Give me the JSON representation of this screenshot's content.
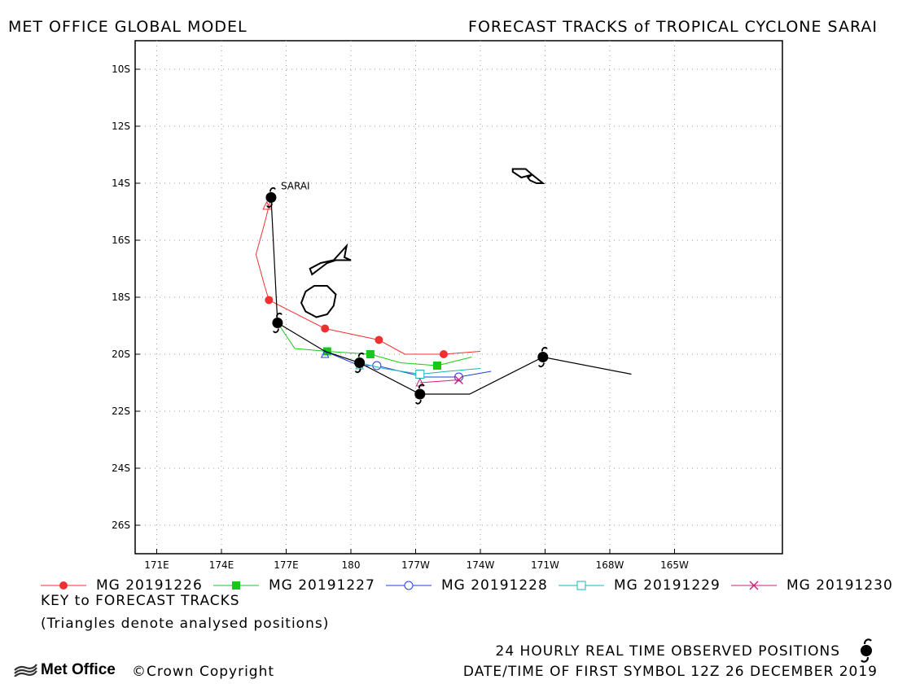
{
  "header": {
    "left": "MET OFFICE GLOBAL MODEL",
    "right": "FORECAST TRACKS of TROPICAL CYCLONE SARAI"
  },
  "chart_data": {
    "type": "scatter",
    "title": "FORECAST TRACKS of TROPICAL CYCLONE SARAI",
    "x_ticks": [
      "171E",
      "174E",
      "177E",
      "180",
      "177W",
      "174W",
      "171W",
      "168W",
      "165W"
    ],
    "x_tick_values": [
      171,
      174,
      177,
      180,
      183,
      186,
      189,
      192,
      195
    ],
    "y_ticks": [
      "10S",
      "12S",
      "14S",
      "16S",
      "18S",
      "20S",
      "22S",
      "24S",
      "26S"
    ],
    "y_tick_values": [
      -10,
      -12,
      -14,
      -16,
      -18,
      -20,
      -22,
      -24,
      -26
    ],
    "xlim": [
      170.0,
      200.0
    ],
    "ylim": [
      -27.0,
      -9.0
    ],
    "grid": true,
    "storm_label": "SARAI",
    "observed_track": [
      [
        176.3,
        -14.5
      ],
      [
        176.6,
        -18.9
      ],
      [
        178.8,
        -19.9
      ],
      [
        180.4,
        -20.3
      ],
      [
        183.2,
        -21.4
      ],
      [
        185.5,
        -21.4
      ],
      [
        188.9,
        -20.1
      ],
      [
        193.0,
        -20.7
      ]
    ],
    "observed_symbols": [
      [
        176.3,
        -14.5
      ],
      [
        176.6,
        -18.9
      ],
      [
        180.4,
        -20.3
      ],
      [
        183.2,
        -21.4
      ],
      [
        188.9,
        -20.1
      ]
    ],
    "series": [
      {
        "name": "MG 20191226",
        "color": "#f03030",
        "marker": "filled-circle",
        "points": [
          [
            176.3,
            -14.5
          ],
          [
            176.0,
            -15.4
          ],
          [
            175.6,
            -16.5
          ],
          [
            176.0,
            -17.6
          ],
          [
            176.2,
            -18.1
          ],
          [
            178.8,
            -19.1
          ],
          [
            181.3,
            -19.5
          ],
          [
            182.5,
            -20.0
          ],
          [
            184.3,
            -20.0
          ],
          [
            186.0,
            -19.9
          ]
        ],
        "markers": [
          [
            176.2,
            -18.1
          ],
          [
            178.8,
            -19.1
          ],
          [
            181.3,
            -19.5
          ],
          [
            184.3,
            -20.0
          ]
        ],
        "analysed": [
          [
            176.1,
            -14.8
          ]
        ]
      },
      {
        "name": "MG 20191227",
        "color": "#18c818",
        "marker": "filled-square",
        "points": [
          [
            176.6,
            -18.9
          ],
          [
            177.4,
            -19.8
          ],
          [
            178.9,
            -19.9
          ],
          [
            180.9,
            -20.0
          ],
          [
            182.3,
            -20.3
          ],
          [
            184.0,
            -20.4
          ],
          [
            185.6,
            -20.1
          ]
        ],
        "markers": [
          [
            178.9,
            -19.9
          ],
          [
            180.9,
            -20.0
          ],
          [
            184.0,
            -20.4
          ]
        ],
        "analysed": [
          [
            176.6,
            -18.9
          ]
        ]
      },
      {
        "name": "MG 20191228",
        "color": "#2040e0",
        "marker": "open-circle",
        "points": [
          [
            178.8,
            -19.9
          ],
          [
            180.4,
            -20.4
          ],
          [
            181.2,
            -20.4
          ],
          [
            183.4,
            -20.8
          ],
          [
            185.0,
            -20.8
          ],
          [
            186.5,
            -20.6
          ]
        ],
        "markers": [
          [
            181.2,
            -20.4
          ],
          [
            185.0,
            -20.8
          ]
        ],
        "analysed": [
          [
            178.8,
            -20.0
          ]
        ]
      },
      {
        "name": "MG 20191229",
        "color": "#10b8b8",
        "marker": "open-square",
        "points": [
          [
            180.4,
            -20.3
          ],
          [
            181.5,
            -20.5
          ],
          [
            183.2,
            -20.7
          ],
          [
            184.5,
            -20.6
          ],
          [
            186.0,
            -20.5
          ]
        ],
        "markers": [
          [
            183.2,
            -20.7
          ]
        ],
        "analysed": [
          [
            180.4,
            -20.4
          ]
        ]
      },
      {
        "name": "MG 20191230",
        "color": "#d0207a",
        "marker": "cross",
        "points": [
          [
            183.2,
            -21.0
          ],
          [
            185.0,
            -20.9
          ]
        ],
        "markers": [
          [
            185.0,
            -20.9
          ]
        ],
        "analysed": [
          [
            183.2,
            -21.0
          ]
        ]
      }
    ],
    "land": [
      [
        [
          178.4,
          -18.7
        ],
        [
          178.9,
          -18.6
        ],
        [
          179.2,
          -18.3
        ],
        [
          179.3,
          -17.9
        ],
        [
          178.9,
          -17.6
        ],
        [
          178.3,
          -17.6
        ],
        [
          177.9,
          -17.8
        ],
        [
          177.7,
          -18.2
        ],
        [
          177.9,
          -18.5
        ]
      ],
      [
        [
          178.1,
          -17.0
        ],
        [
          178.6,
          -16.8
        ],
        [
          179.2,
          -16.7
        ],
        [
          179.8,
          -16.2
        ],
        [
          179.7,
          -16.6
        ],
        [
          180.0,
          -16.7
        ],
        [
          179.3,
          -16.7
        ],
        [
          178.9,
          -16.8
        ],
        [
          178.2,
          -17.2
        ]
      ],
      [
        [
          187.5,
          -13.5
        ],
        [
          188.1,
          -13.5
        ],
        [
          188.4,
          -13.7
        ],
        [
          187.9,
          -13.8
        ],
        [
          187.5,
          -13.6
        ]
      ],
      [
        [
          188.2,
          -13.8
        ],
        [
          188.4,
          -13.7
        ],
        [
          188.9,
          -14.0
        ],
        [
          188.6,
          -14.0
        ],
        [
          188.3,
          -13.9
        ]
      ]
    ]
  },
  "legend": {
    "items": [
      {
        "label": "MG 20191226",
        "color": "#f03030",
        "marker": "filled-circle"
      },
      {
        "label": "MG 20191227",
        "color": "#18c818",
        "marker": "filled-square"
      },
      {
        "label": "MG 20191228",
        "color": "#2040e0",
        "marker": "open-circle"
      },
      {
        "label": "MG 20191229",
        "color": "#10b8b8",
        "marker": "open-square"
      },
      {
        "label": "MG 20191230",
        "color": "#d0207a",
        "marker": "cross"
      }
    ]
  },
  "key": {
    "title": "KEY to FORECAST TRACKS",
    "note": "(Triangles denote analysed positions)"
  },
  "footer": {
    "observed": "24 HOURLY REAL TIME OBSERVED POSITIONS",
    "datetime": "DATE/TIME OF FIRST SYMBOL 12Z 26 DECEMBER 2019",
    "logo": "Met Office",
    "copyright": "©Crown Copyright"
  }
}
